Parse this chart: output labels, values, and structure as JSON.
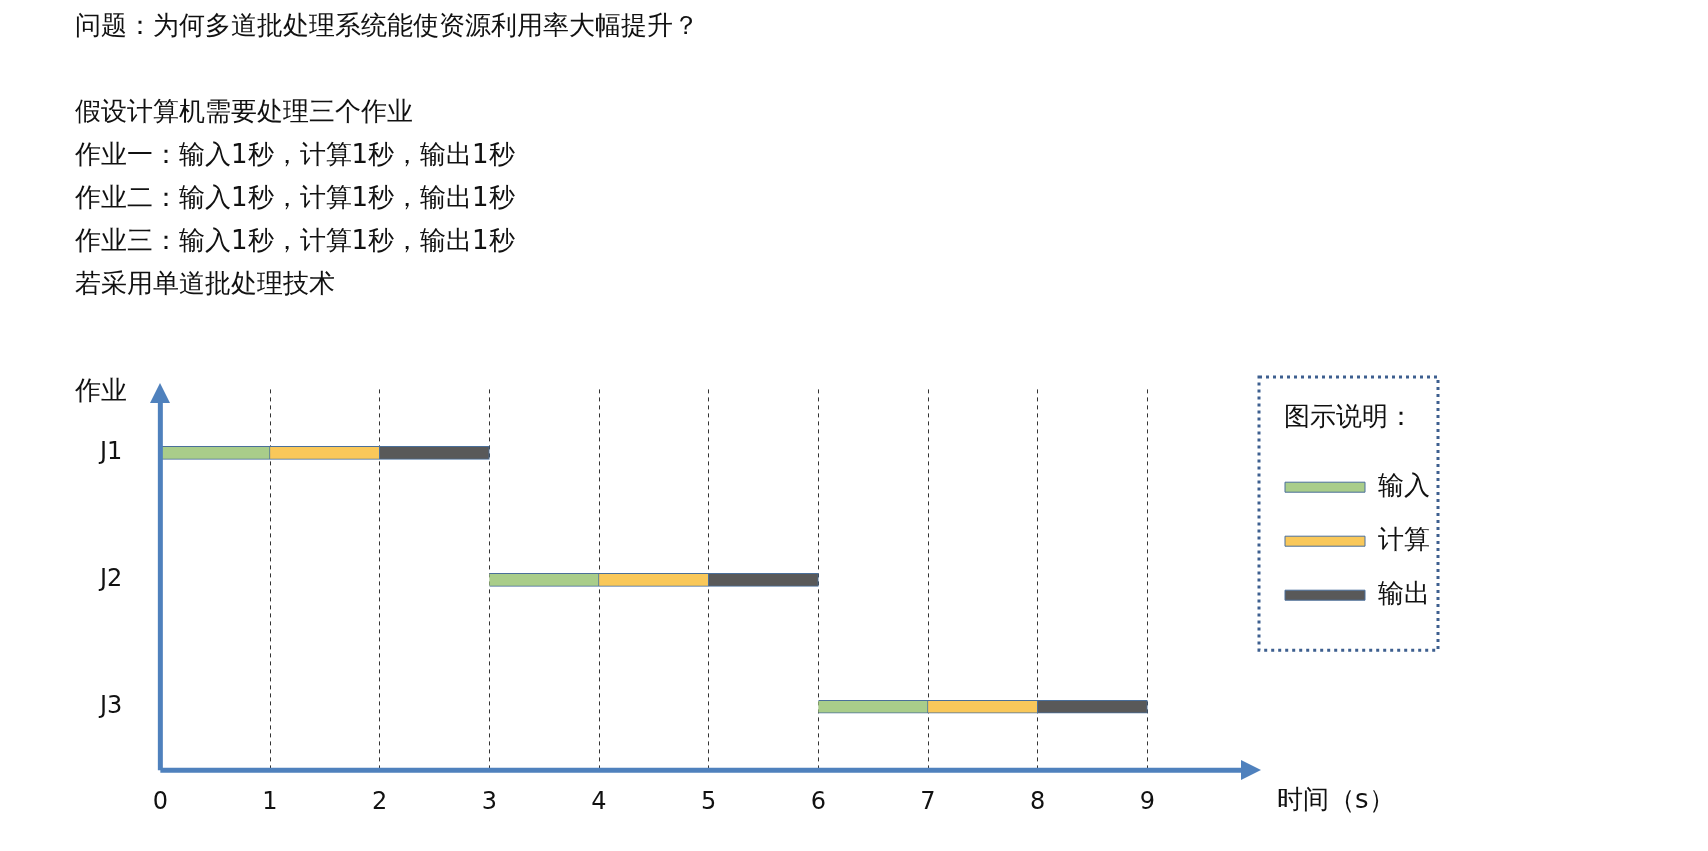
{
  "chart_data": {
    "type": "bar",
    "orientation": "horizontal",
    "title": "问题：为何多道批处理系统能使资源利用率大幅提升？",
    "subtitle": "假设计算机需要处理三个作业",
    "annotations": [
      "作业一：输入1秒，计算1秒，输出1秒",
      "作业二：输入1秒，计算1秒，输出1秒",
      "作业三：输入1秒，计算1秒，输出1秒",
      "若采用单道批处理技术"
    ],
    "categories": [
      "J1",
      "J2",
      "J3"
    ],
    "series": [
      {
        "name": "输入",
        "color": "#a9cd8a",
        "values": [
          1,
          1,
          1
        ],
        "base": [
          0,
          3,
          6
        ]
      },
      {
        "name": "计算",
        "color": "#f9c85a",
        "values": [
          1,
          1,
          1
        ],
        "base": [
          1,
          4,
          7
        ]
      },
      {
        "name": "输出",
        "color": "#595959",
        "values": [
          1,
          1,
          1
        ],
        "base": [
          2,
          5,
          8
        ]
      }
    ],
    "xlim": [
      0,
      10
    ],
    "xticks": [
      0,
      1,
      2,
      3,
      4,
      5,
      6,
      7,
      8,
      9
    ],
    "xlabel": "时间（s）",
    "ylabel": "作业",
    "grid": "x",
    "legend": "top right",
    "legend_title": "图示说明："
  }
}
